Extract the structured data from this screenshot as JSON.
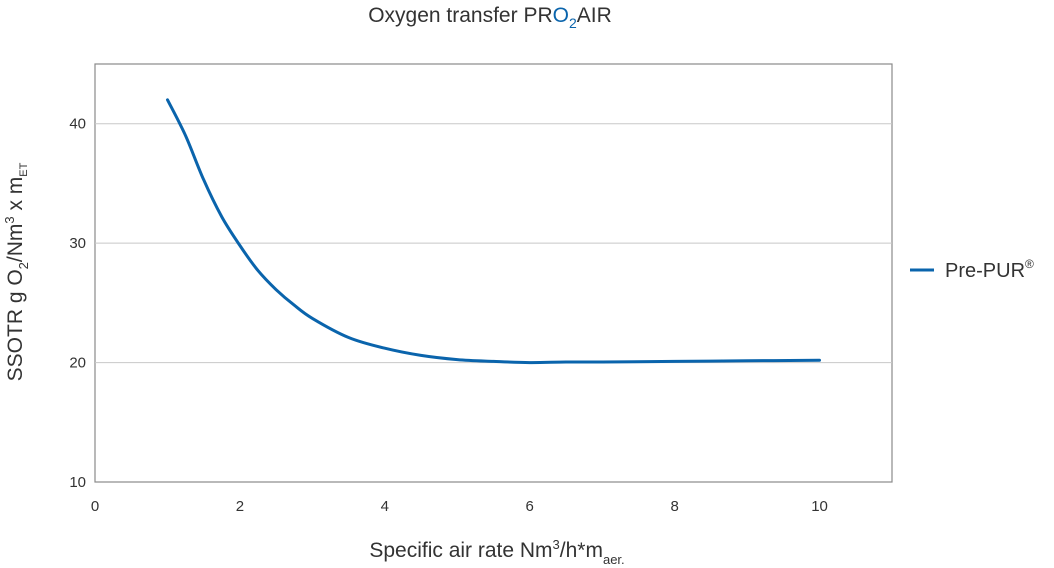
{
  "chart_data": {
    "type": "line",
    "title": {
      "prefix": "Oxygen transfer ",
      "brand_pr": "PR",
      "brand_o": "O",
      "brand_sub": "2",
      "brand_air": "AIR"
    },
    "xlabel": {
      "main": "Specific air rate Nm",
      "sup": "3",
      "mid": "/h*m",
      "sub": "aer."
    },
    "ylabel": {
      "p1": "SSOTR g O",
      "sub1": "2",
      "p2": "/Nm",
      "sup1": "3",
      "p3": " x m",
      "sub2": "ET"
    },
    "xlim": [
      0,
      11
    ],
    "ylim": [
      10,
      45
    ],
    "x_ticks": [
      0,
      2,
      4,
      6,
      8,
      10
    ],
    "y_ticks": [
      10,
      20,
      30,
      40
    ],
    "grid": "horizontal",
    "legend_position": "right",
    "series": [
      {
        "name": "Pre-PUR",
        "name_sup": "®",
        "color": "#0a64ac",
        "x": [
          1.0,
          1.25,
          1.5,
          1.75,
          2.0,
          2.25,
          2.5,
          2.75,
          3.0,
          3.5,
          4.0,
          4.5,
          5.0,
          5.5,
          6.0,
          6.5,
          7.0,
          8.0,
          9.0,
          10.0
        ],
        "y": [
          42.0,
          39.0,
          35.3,
          32.2,
          29.8,
          27.7,
          26.1,
          24.8,
          23.7,
          22.1,
          21.2,
          20.6,
          20.25,
          20.1,
          20.0,
          20.05,
          20.05,
          20.1,
          20.15,
          20.2
        ]
      }
    ],
    "colors": {
      "grid": "#c8c8c8",
      "frame": "#8a8a8a",
      "brand": "#0a64ac"
    }
  }
}
